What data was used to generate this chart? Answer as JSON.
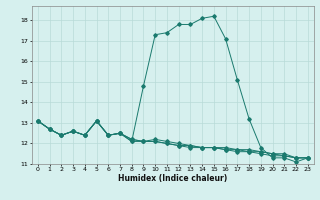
{
  "xlabel": "Humidex (Indice chaleur)",
  "ylabel": "",
  "bg_color": "#d6f0ee",
  "grid_color": "#b8dbd8",
  "line_color": "#1a7a6e",
  "xlim": [
    -0.5,
    23.5
  ],
  "ylim": [
    11,
    18.7
  ],
  "yticks": [
    11,
    12,
    13,
    14,
    15,
    16,
    17,
    18
  ],
  "xticks": [
    0,
    1,
    2,
    3,
    4,
    5,
    6,
    7,
    8,
    9,
    10,
    11,
    12,
    13,
    14,
    15,
    16,
    17,
    18,
    19,
    20,
    21,
    22,
    23
  ],
  "series": [
    [
      13.1,
      12.7,
      12.4,
      12.6,
      12.4,
      13.1,
      12.4,
      12.5,
      12.1,
      14.8,
      17.3,
      17.4,
      17.8,
      17.8,
      18.1,
      18.2,
      17.1,
      15.1,
      13.2,
      11.8,
      11.3,
      11.3,
      11.1,
      11.3
    ],
    [
      13.1,
      12.7,
      12.4,
      12.6,
      12.4,
      13.1,
      12.4,
      12.5,
      12.1,
      12.1,
      12.2,
      12.1,
      12.0,
      11.9,
      11.8,
      11.8,
      11.7,
      11.7,
      11.6,
      11.6,
      11.5,
      11.4,
      11.3,
      11.3
    ],
    [
      13.1,
      12.7,
      12.4,
      12.6,
      12.4,
      13.1,
      12.4,
      12.5,
      12.2,
      12.1,
      12.1,
      12.0,
      11.9,
      11.8,
      11.8,
      11.8,
      11.7,
      11.6,
      11.6,
      11.5,
      11.4,
      11.4,
      11.3,
      11.3
    ],
    [
      13.1,
      12.7,
      12.4,
      12.6,
      12.4,
      13.1,
      12.4,
      12.5,
      12.2,
      12.1,
      12.1,
      12.0,
      11.9,
      11.9,
      11.8,
      11.8,
      11.8,
      11.7,
      11.7,
      11.6,
      11.5,
      11.5,
      11.3,
      11.3
    ]
  ],
  "marker": "D",
  "markersize": 1.8,
  "linewidth": 0.7
}
